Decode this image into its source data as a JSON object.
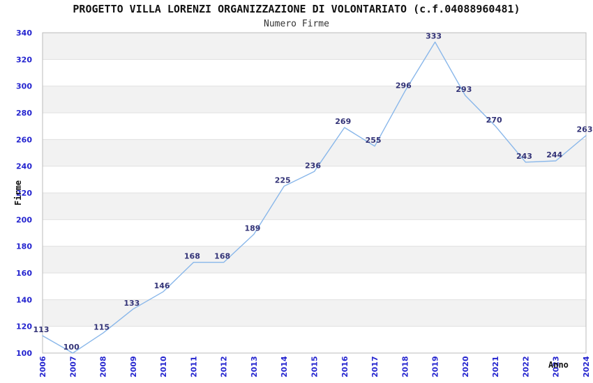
{
  "chart_data": {
    "type": "line",
    "title": "PROGETTO VILLA LORENZI ORGANIZZAZIONE DI VOLONTARIATO (c.f.04088960481)",
    "subtitle": "Numero Firme",
    "xlabel": "Anno",
    "ylabel": "Firme",
    "categories": [
      "2006",
      "2007",
      "2008",
      "2009",
      "2010",
      "2011",
      "2012",
      "2013",
      "2014",
      "2015",
      "2016",
      "2017",
      "2018",
      "2019",
      "2020",
      "2021",
      "2022",
      "2023",
      "2024"
    ],
    "series": [
      {
        "name": "Numero Firme",
        "values": [
          113,
          100,
          115,
          133,
          146,
          168,
          168,
          189,
          225,
          236,
          269,
          255,
          296,
          333,
          293,
          270,
          243,
          244,
          263
        ]
      }
    ],
    "ylim": [
      100,
      340
    ],
    "ytick_step": 20,
    "grid": "horizontal-gridlines-with-alternating-bands",
    "legend": "none",
    "data_labels": "shown-above-points",
    "colors": {
      "line": "#89b7ea",
      "axis_tick_label": "#2424cf",
      "data_label": "#333377",
      "band": "#f2f2f2",
      "gridline": "#e0e0e0",
      "plot_border": "#bbbbbb",
      "title": "#111111",
      "subtitle": "#333333",
      "axis_title": "#111111"
    }
  }
}
